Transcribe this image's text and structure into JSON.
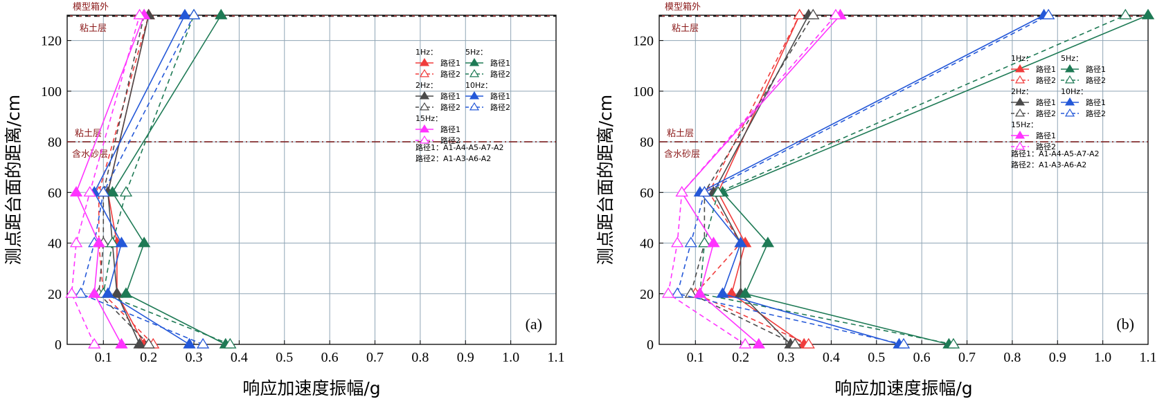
{
  "chart_data": [
    {
      "type": "line",
      "panel_label": "(a)",
      "xlabel": "响应加速度振幅/g",
      "ylabel": "测点距台面的距离/cm",
      "xlim": [
        0.02,
        1.1
      ],
      "ylim": [
        0,
        130
      ],
      "xticks": [
        0.1,
        0.2,
        0.3,
        0.4,
        0.5,
        0.6,
        0.7,
        0.8,
        0.9,
        1.0,
        1.1
      ],
      "xtick_labels": [
        "0.1",
        "0.2",
        "0.3",
        "0.4",
        "0.5",
        "0.6",
        "0.7",
        "0.8",
        "0.9",
        "1.0",
        "1.1"
      ],
      "yticks": [
        0,
        20,
        40,
        60,
        80,
        100,
        120
      ],
      "ytick_labels": [
        "0",
        "20",
        "40",
        "60",
        "80",
        "100",
        "120"
      ],
      "grid": true,
      "reference_lines": [
        {
          "y": 130,
          "label": "模型箱外",
          "style": "dashed"
        },
        {
          "y": 80,
          "label_above": "粘土层",
          "label_below": "含水砂层",
          "style": "dashdot"
        }
      ],
      "top_layer_label": "粘土层",
      "legend": {
        "placement": "top-right",
        "groups": [
          {
            "title": "1Hz：",
            "entries": [
              "路径1",
              "路径2"
            ]
          },
          {
            "title": "5Hz：",
            "entries": [
              "路径1",
              "路径2"
            ]
          },
          {
            "title": "2Hz：",
            "entries": [
              "路径1",
              "路径2"
            ]
          },
          {
            "title": "10Hz：",
            "entries": [
              "路径1",
              "路径2"
            ]
          },
          {
            "title": "15Hz：",
            "entries": [
              "路径1",
              "路径2"
            ]
          }
        ],
        "notes": [
          "路径1：A1-A4-A5-A7-A2",
          "路径2：A1-A3-A6-A2"
        ]
      },
      "series": [
        {
          "name": "1Hz 路径1",
          "color": "#f03c3c",
          "style": "solid",
          "marker": "filled-triangle",
          "x": [
            0.19,
            0.13,
            0.13,
            0.11,
            0.2
          ],
          "y": [
            0,
            20,
            40,
            60,
            130
          ]
        },
        {
          "name": "1Hz 路径2",
          "color": "#f03c3c",
          "style": "dashed",
          "marker": "open-triangle",
          "x": [
            0.21,
            0.1,
            0.09,
            0.09,
            0.2
          ],
          "y": [
            0,
            20,
            40,
            60,
            130
          ]
        },
        {
          "name": "2Hz 路径1",
          "color": "#4a4a4a",
          "style": "solid",
          "marker": "filled-triangle",
          "x": [
            0.18,
            0.13,
            0.12,
            0.11,
            0.2
          ],
          "y": [
            0,
            20,
            40,
            60,
            130
          ]
        },
        {
          "name": "2Hz 路径2",
          "color": "#4a4a4a",
          "style": "dashed",
          "marker": "open-triangle",
          "x": [
            0.2,
            0.09,
            0.1,
            0.1,
            0.19
          ],
          "y": [
            0,
            20,
            40,
            60,
            130
          ]
        },
        {
          "name": "5Hz 路径1",
          "color": "#1e7a55",
          "style": "solid",
          "marker": "filled-triangle",
          "x": [
            0.37,
            0.15,
            0.19,
            0.12,
            0.36
          ],
          "y": [
            0,
            20,
            40,
            60,
            130
          ]
        },
        {
          "name": "5Hz 路径2",
          "color": "#1e7a55",
          "style": "dashed",
          "marker": "open-triangle",
          "x": [
            0.38,
            0.1,
            0.12,
            0.15,
            0.3
          ],
          "y": [
            0,
            20,
            40,
            60,
            130
          ]
        },
        {
          "name": "10Hz 路径1",
          "color": "#2458d8",
          "style": "solid",
          "marker": "filled-triangle",
          "x": [
            0.29,
            0.11,
            0.14,
            0.08,
            0.28
          ],
          "y": [
            0,
            20,
            40,
            60,
            130
          ]
        },
        {
          "name": "10Hz 路径2",
          "color": "#2458d8",
          "style": "dashed",
          "marker": "open-triangle",
          "x": [
            0.32,
            0.05,
            0.08,
            0.1,
            0.3
          ],
          "y": [
            0,
            20,
            40,
            60,
            130
          ]
        },
        {
          "name": "15Hz 路径1",
          "color": "#ff33ff",
          "style": "solid",
          "marker": "filled-triangle",
          "x": [
            0.14,
            0.08,
            0.09,
            0.04,
            0.19
          ],
          "y": [
            0,
            20,
            40,
            60,
            130
          ]
        },
        {
          "name": "15Hz 路径2",
          "color": "#ff33ff",
          "style": "dashed",
          "marker": "open-triangle",
          "x": [
            0.08,
            0.03,
            0.04,
            0.07,
            0.18
          ],
          "y": [
            0,
            20,
            40,
            60,
            130
          ]
        }
      ]
    },
    {
      "type": "line",
      "panel_label": "(b)",
      "xlabel": "响应加速度振幅/g",
      "ylabel": "测点距台面的距离/cm",
      "xlim": [
        0.02,
        1.1
      ],
      "ylim": [
        0,
        130
      ],
      "xticks": [
        0.1,
        0.2,
        0.3,
        0.4,
        0.5,
        0.6,
        0.7,
        0.8,
        0.9,
        1.0,
        1.1
      ],
      "xtick_labels": [
        "0.1",
        "0.2",
        "0.3",
        "0.4",
        "0.5",
        "0.6",
        "0.7",
        "0.8",
        "0.9",
        "1.0",
        "1.1"
      ],
      "yticks": [
        0,
        20,
        40,
        60,
        80,
        100,
        120
      ],
      "ytick_labels": [
        "0",
        "20",
        "40",
        "60",
        "80",
        "100",
        "120"
      ],
      "grid": true,
      "reference_lines": [
        {
          "y": 130,
          "label": "模型箱外",
          "style": "dashed"
        },
        {
          "y": 80,
          "label_above": "粘土层",
          "label_below": "含水砂层",
          "style": "dashdot"
        }
      ],
      "top_layer_label": "粘土层",
      "legend": {
        "placement": "top-right",
        "groups": [
          {
            "title": "1Hz：",
            "entries": [
              "路径1",
              "路径2"
            ]
          },
          {
            "title": "5Hz：",
            "entries": [
              "路径1",
              "路径2"
            ]
          },
          {
            "title": "2Hz：",
            "entries": [
              "路径1",
              "路径2"
            ]
          },
          {
            "title": "10Hz：",
            "entries": [
              "路径1",
              "路径2"
            ]
          },
          {
            "title": "15Hz：",
            "entries": [
              "路径1",
              "路径2"
            ]
          }
        ],
        "notes": [
          "路径1：A1-A4-A5-A7-A2",
          "路径2：A1-A3-A6-A2"
        ]
      },
      "series": [
        {
          "name": "1Hz 路径1",
          "color": "#f03c3c",
          "style": "solid",
          "marker": "filled-triangle",
          "x": [
            0.34,
            0.18,
            0.21,
            0.15,
            0.33
          ],
          "y": [
            0,
            20,
            40,
            60,
            130
          ]
        },
        {
          "name": "1Hz 路径2",
          "color": "#f03c3c",
          "style": "dashed",
          "marker": "open-triangle",
          "x": [
            0.35,
            0.1,
            0.2,
            0.13,
            0.33
          ],
          "y": [
            0,
            20,
            40,
            60,
            130
          ]
        },
        {
          "name": "2Hz 路径1",
          "color": "#4a4a4a",
          "style": "solid",
          "marker": "filled-triangle",
          "x": [
            0.31,
            0.2,
            0.2,
            0.14,
            0.35
          ],
          "y": [
            0,
            20,
            40,
            60,
            130
          ]
        },
        {
          "name": "2Hz 路径2",
          "color": "#4a4a4a",
          "style": "dashed",
          "marker": "open-triangle",
          "x": [
            0.32,
            0.09,
            0.12,
            0.12,
            0.36
          ],
          "y": [
            0,
            20,
            40,
            60,
            130
          ]
        },
        {
          "name": "5Hz 路径1",
          "color": "#1e7a55",
          "style": "solid",
          "marker": "filled-triangle",
          "x": [
            0.66,
            0.21,
            0.26,
            0.16,
            1.1
          ],
          "y": [
            0,
            20,
            40,
            60,
            130
          ]
        },
        {
          "name": "5Hz 路径2",
          "color": "#1e7a55",
          "style": "dashed",
          "marker": "open-triangle",
          "x": [
            0.67,
            0.11,
            0.12,
            0.15,
            1.05
          ],
          "y": [
            0,
            20,
            40,
            60,
            130
          ]
        },
        {
          "name": "10Hz 路径1",
          "color": "#2458d8",
          "style": "solid",
          "marker": "filled-triangle",
          "x": [
            0.55,
            0.16,
            0.2,
            0.11,
            0.87
          ],
          "y": [
            0,
            20,
            40,
            60,
            130
          ]
        },
        {
          "name": "10Hz 路径2",
          "color": "#2458d8",
          "style": "dashed",
          "marker": "open-triangle",
          "x": [
            0.56,
            0.06,
            0.09,
            0.12,
            0.88
          ],
          "y": [
            0,
            20,
            40,
            60,
            130
          ]
        },
        {
          "name": "15Hz 路径1",
          "color": "#ff33ff",
          "style": "solid",
          "marker": "filled-triangle",
          "x": [
            0.24,
            0.11,
            0.14,
            0.07,
            0.42
          ],
          "y": [
            0,
            20,
            40,
            60,
            130
          ]
        },
        {
          "name": "15Hz 路径2",
          "color": "#ff33ff",
          "style": "dashed",
          "marker": "open-triangle",
          "x": [
            0.21,
            0.04,
            0.06,
            0.07,
            0.41
          ],
          "y": [
            0,
            20,
            40,
            60,
            130
          ]
        }
      ]
    }
  ]
}
